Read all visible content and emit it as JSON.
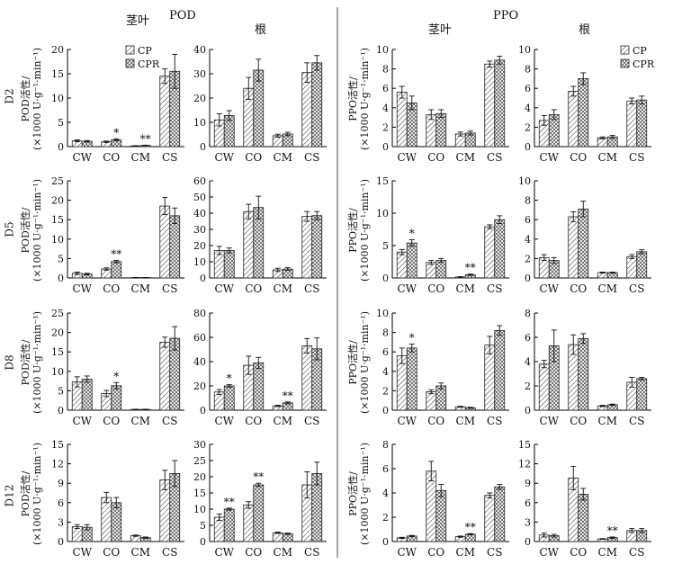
{
  "figure": {
    "pod_title": "POD",
    "ppo_title": "PPO",
    "col_stem_leaf": "茎叶",
    "col_root": "根",
    "rows": [
      "D2",
      "D5",
      "D8",
      "D12"
    ],
    "pod_ylabel_1": "POD活性/",
    "pod_ylabel_2": "(×1000 U·g⁻¹·min⁻¹)",
    "ppo_ylabel_1": "PPO活性/",
    "ppo_ylabel_2": "(×1000 U·g⁻¹·min⁻¹)"
  },
  "legend": {
    "cp": "CP",
    "cpr": "CPR"
  },
  "colors": {
    "axis": "#000000",
    "divider": "#888888",
    "bar_fill": "#ffffff"
  },
  "chart_data": {
    "type": "bar",
    "categories": [
      "CW",
      "CO",
      "CM",
      "CS"
    ],
    "series_names": [
      "CP",
      "CPR"
    ],
    "panels": [
      {
        "id": "D2-POD-stem",
        "enzyme": "POD",
        "tissue": "茎叶",
        "day": "D2",
        "ylim": [
          0,
          20
        ],
        "ticks": [
          0,
          5,
          10,
          15,
          20
        ],
        "cp": [
          1.2,
          1.0,
          0.15,
          14.5
        ],
        "cpr": [
          1.1,
          1.4,
          0.25,
          15.5
        ],
        "cp_err": [
          0.2,
          0.15,
          0.05,
          1.5
        ],
        "cpr_err": [
          0.15,
          0.2,
          0.05,
          3.5
        ],
        "marks": [
          {
            "cat": 1,
            "text": "*"
          },
          {
            "cat": 2,
            "text": "**"
          }
        ]
      },
      {
        "id": "D2-POD-root",
        "enzyme": "POD",
        "tissue": "根",
        "day": "D2",
        "ylim": [
          0,
          40
        ],
        "ticks": [
          0,
          10,
          20,
          30,
          40
        ],
        "cp": [
          11,
          24,
          4.5,
          30.5
        ],
        "cpr": [
          12.8,
          31.5,
          5.2,
          34.5
        ],
        "cp_err": [
          2.5,
          4.5,
          0.6,
          4
        ],
        "cpr_err": [
          2,
          4.5,
          0.7,
          3
        ],
        "marks": []
      },
      {
        "id": "D2-PPO-stem",
        "enzyme": "PPO",
        "tissue": "茎叶",
        "day": "D2",
        "ylim": [
          0,
          10
        ],
        "ticks": [
          0,
          2,
          4,
          6,
          8,
          10
        ],
        "cp": [
          5.6,
          3.3,
          1.3,
          8.5
        ],
        "cpr": [
          4.5,
          3.4,
          1.4,
          8.9
        ],
        "cp_err": [
          0.6,
          0.5,
          0.2,
          0.3
        ],
        "cpr_err": [
          0.7,
          0.4,
          0.2,
          0.4
        ],
        "marks": []
      },
      {
        "id": "D2-PPO-root",
        "enzyme": "PPO",
        "tissue": "根",
        "day": "D2",
        "ylim": [
          0,
          10
        ],
        "ticks": [
          0,
          2,
          4,
          6,
          8,
          10
        ],
        "cp": [
          2.7,
          5.7,
          0.9,
          4.7
        ],
        "cpr": [
          3.3,
          7.0,
          1.0,
          4.8
        ],
        "cp_err": [
          0.5,
          0.5,
          0.1,
          0.3
        ],
        "cpr_err": [
          0.5,
          0.6,
          0.15,
          0.4
        ],
        "marks": []
      },
      {
        "id": "D5-POD-stem",
        "enzyme": "POD",
        "tissue": "茎叶",
        "day": "D5",
        "ylim": [
          0,
          25
        ],
        "ticks": [
          0,
          5,
          10,
          15,
          20,
          25
        ],
        "cp": [
          1.2,
          2.3,
          0.1,
          18.5
        ],
        "cpr": [
          1.0,
          4.2,
          0.1,
          16
        ],
        "cp_err": [
          0.3,
          0.3,
          0.02,
          2.2
        ],
        "cpr_err": [
          0.2,
          0.3,
          0.02,
          2
        ],
        "marks": [
          {
            "cat": 1,
            "text": "**"
          }
        ]
      },
      {
        "id": "D5-POD-root",
        "enzyme": "POD",
        "tissue": "根",
        "day": "D5",
        "ylim": [
          0,
          60
        ],
        "ticks": [
          0,
          10,
          20,
          30,
          40,
          50,
          60
        ],
        "cp": [
          17,
          41,
          5,
          38
        ],
        "cpr": [
          17,
          43.5,
          5.5,
          38.5
        ],
        "cp_err": [
          2.5,
          4.5,
          1,
          3
        ],
        "cpr_err": [
          1.5,
          7,
          0.8,
          2.5
        ],
        "marks": []
      },
      {
        "id": "D5-PPO-stem",
        "enzyme": "PPO",
        "tissue": "茎叶",
        "day": "D5",
        "ylim": [
          0,
          15
        ],
        "ticks": [
          0,
          5,
          10,
          15
        ],
        "cp": [
          4.0,
          2.4,
          0.15,
          7.9
        ],
        "cpr": [
          5.4,
          2.7,
          0.5,
          9.0
        ],
        "cp_err": [
          0.4,
          0.3,
          0.05,
          0.3
        ],
        "cpr_err": [
          0.5,
          0.3,
          0.1,
          0.6
        ],
        "marks": [
          {
            "cat": 0,
            "text": "*"
          },
          {
            "cat": 2,
            "text": "**"
          }
        ]
      },
      {
        "id": "D5-PPO-root",
        "enzyme": "PPO",
        "tissue": "根",
        "day": "D5",
        "ylim": [
          0,
          10
        ],
        "ticks": [
          0,
          2,
          4,
          6,
          8,
          10
        ],
        "cp": [
          2.1,
          6.3,
          0.55,
          2.2
        ],
        "cpr": [
          1.8,
          7.1,
          0.55,
          2.7
        ],
        "cp_err": [
          0.3,
          0.5,
          0.05,
          0.2
        ],
        "cpr_err": [
          0.3,
          0.8,
          0.05,
          0.2
        ],
        "marks": []
      },
      {
        "id": "D8-POD-stem",
        "enzyme": "POD",
        "tissue": "茎叶",
        "day": "D8",
        "ylim": [
          0,
          25
        ],
        "ticks": [
          0,
          5,
          10,
          15,
          20,
          25
        ],
        "cp": [
          7.3,
          4.3,
          0.2,
          17.5
        ],
        "cpr": [
          8.0,
          6.3,
          0.2,
          18.5
        ],
        "cp_err": [
          1.3,
          0.8,
          0.05,
          1.3
        ],
        "cpr_err": [
          0.8,
          0.8,
          0.05,
          3
        ],
        "marks": [
          {
            "cat": 1,
            "text": "*"
          }
        ]
      },
      {
        "id": "D8-POD-root",
        "enzyme": "POD",
        "tissue": "根",
        "day": "D8",
        "ylim": [
          0,
          80
        ],
        "ticks": [
          0,
          20,
          40,
          60,
          80
        ],
        "cp": [
          15,
          37,
          3.5,
          53
        ],
        "cpr": [
          20,
          39,
          6,
          50.5
        ],
        "cp_err": [
          2,
          7.5,
          0.5,
          6
        ],
        "cpr_err": [
          1,
          4.5,
          0.8,
          9
        ],
        "marks": [
          {
            "cat": 0,
            "text": "*"
          },
          {
            "cat": 2,
            "text": "**"
          }
        ]
      },
      {
        "id": "D8-PPO-stem",
        "enzyme": "PPO",
        "tissue": "茎叶",
        "day": "D8",
        "ylim": [
          0,
          10
        ],
        "ticks": [
          0,
          2,
          4,
          6,
          8,
          10
        ],
        "cp": [
          5.6,
          1.9,
          0.35,
          6.7
        ],
        "cpr": [
          6.4,
          2.5,
          0.25,
          8.2
        ],
        "cp_err": [
          0.8,
          0.2,
          0.05,
          0.9
        ],
        "cpr_err": [
          0.4,
          0.3,
          0.05,
          0.5
        ],
        "marks": [
          {
            "cat": 0,
            "text": "*"
          }
        ]
      },
      {
        "id": "D8-PPO-root",
        "enzyme": "PPO",
        "tissue": "根",
        "day": "D8",
        "ylim": [
          0,
          8
        ],
        "ticks": [
          0,
          2,
          4,
          6,
          8
        ],
        "cp": [
          3.8,
          5.4,
          0.35,
          2.3
        ],
        "cpr": [
          5.3,
          5.9,
          0.45,
          2.6
        ],
        "cp_err": [
          0.3,
          0.8,
          0.05,
          0.4
        ],
        "cpr_err": [
          1.3,
          0.4,
          0.05,
          0.1
        ],
        "marks": []
      },
      {
        "id": "D12-POD-stem",
        "enzyme": "POD",
        "tissue": "茎叶",
        "day": "D12",
        "ylim": [
          0,
          15
        ],
        "ticks": [
          0,
          3,
          6,
          9,
          12,
          15
        ],
        "cp": [
          2.3,
          6.8,
          0.9,
          9.5
        ],
        "cpr": [
          2.2,
          6.0,
          0.6,
          10.5
        ],
        "cp_err": [
          0.3,
          0.8,
          0.1,
          1.5
        ],
        "cpr_err": [
          0.4,
          0.8,
          0.1,
          2
        ],
        "marks": []
      },
      {
        "id": "D12-POD-root",
        "enzyme": "POD",
        "tissue": "根",
        "day": "D12",
        "ylim": [
          0,
          30
        ],
        "ticks": [
          0,
          5,
          10,
          15,
          20,
          25,
          30
        ],
        "cp": [
          7.5,
          11.3,
          2.7,
          17.5
        ],
        "cpr": [
          10,
          17.5,
          2.4,
          21
        ],
        "cp_err": [
          1,
          1,
          0.2,
          4
        ],
        "cpr_err": [
          0.3,
          0.5,
          0.2,
          3.5
        ],
        "marks": [
          {
            "cat": 0,
            "text": "**"
          },
          {
            "cat": 1,
            "text": "**"
          }
        ]
      },
      {
        "id": "D12-PPO-stem",
        "enzyme": "PPO",
        "tissue": "茎叶",
        "day": "D12",
        "ylim": [
          0,
          8
        ],
        "ticks": [
          0,
          2,
          4,
          6,
          8
        ],
        "cp": [
          0.3,
          5.8,
          0.4,
          3.8
        ],
        "cpr": [
          0.45,
          4.2,
          0.6,
          4.5
        ],
        "cp_err": [
          0.05,
          0.8,
          0.05,
          0.2
        ],
        "cpr_err": [
          0.05,
          0.5,
          0.05,
          0.2
        ],
        "marks": [
          {
            "cat": 2,
            "text": "**"
          }
        ]
      },
      {
        "id": "D12-PPO-root",
        "enzyme": "PPO",
        "tissue": "根",
        "day": "D12",
        "ylim": [
          0,
          15
        ],
        "ticks": [
          0,
          3,
          6,
          9,
          12,
          15
        ],
        "cp": [
          1.0,
          9.8,
          0.4,
          1.7
        ],
        "cpr": [
          0.9,
          7.3,
          0.6,
          1.7
        ],
        "cp_err": [
          0.3,
          1.8,
          0.05,
          0.3
        ],
        "cpr_err": [
          0.2,
          0.9,
          0.1,
          0.3
        ],
        "marks": [
          {
            "cat": 2,
            "text": "**"
          }
        ]
      }
    ]
  }
}
